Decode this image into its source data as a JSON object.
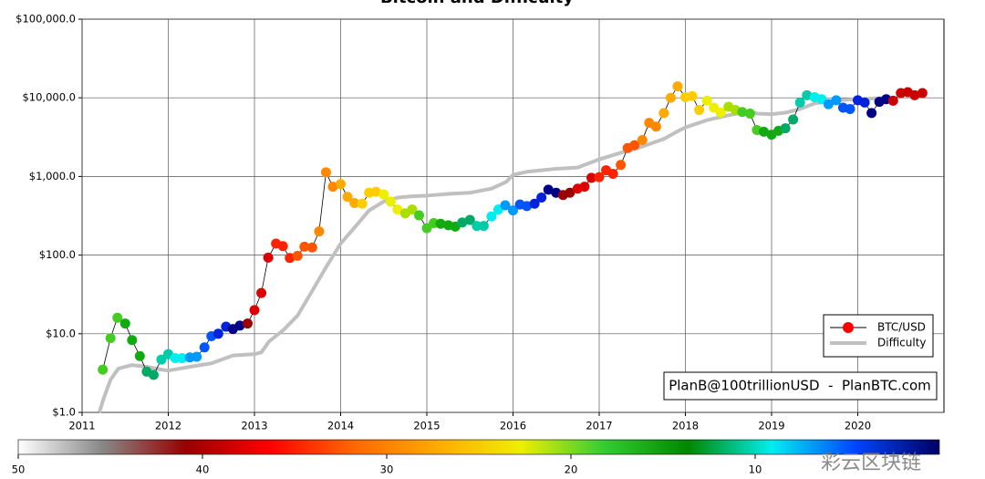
{
  "chart_data": {
    "type": "line",
    "title": "Bitcoin and Difficulty",
    "xlim": [
      2011,
      2021
    ],
    "xticks": [
      2011,
      2012,
      2013,
      2014,
      2015,
      2016,
      2017,
      2018,
      2019,
      2020
    ],
    "ylim": [
      1,
      100000
    ],
    "log_y": true,
    "grid": true,
    "legend": "lower right",
    "yticks": [
      {
        "value": 1,
        "label": "$1.0"
      },
      {
        "value": 10,
        "label": "$10.0"
      },
      {
        "value": 100,
        "label": "$100.0"
      },
      {
        "value": 1000,
        "label": "$1,000.0"
      },
      {
        "value": 10000,
        "label": "$10,000.0"
      },
      {
        "value": 100000,
        "label": "$100,000.0"
      }
    ],
    "series": [
      {
        "name": "BTC/USD",
        "color": "#000000",
        "legend_marker_color": "#ff0000",
        "x": [
          2011.24,
          2011.33,
          2011.41,
          2011.5,
          2011.58,
          2011.67,
          2011.75,
          2011.83,
          2011.92,
          2012.0,
          2012.08,
          2012.16,
          2012.25,
          2012.33,
          2012.42,
          2012.5,
          2012.58,
          2012.67,
          2012.75,
          2012.83,
          2012.92,
          2013.0,
          2013.08,
          2013.16,
          2013.25,
          2013.33,
          2013.41,
          2013.5,
          2013.58,
          2013.67,
          2013.75,
          2013.83,
          2013.91,
          2014.0,
          2014.08,
          2014.16,
          2014.25,
          2014.33,
          2014.41,
          2014.5,
          2014.58,
          2014.66,
          2014.75,
          2014.83,
          2014.91,
          2015.0,
          2015.08,
          2015.16,
          2015.25,
          2015.33,
          2015.41,
          2015.5,
          2015.58,
          2015.66,
          2015.75,
          2015.83,
          2015.91,
          2016.0,
          2016.08,
          2016.16,
          2016.25,
          2016.33,
          2016.41,
          2016.5,
          2016.58,
          2016.66,
          2016.75,
          2016.83,
          2016.91,
          2017.0,
          2017.08,
          2017.16,
          2017.25,
          2017.33,
          2017.41,
          2017.5,
          2017.58,
          2017.66,
          2017.75,
          2017.83,
          2017.91,
          2018.0,
          2018.08,
          2018.16,
          2018.25,
          2018.33,
          2018.41,
          2018.5,
          2018.58,
          2018.66,
          2018.75,
          2018.83,
          2018.91,
          2019.0,
          2019.08,
          2019.16,
          2019.25,
          2019.33,
          2019.41,
          2019.5,
          2019.58,
          2019.66,
          2019.75,
          2019.83,
          2019.91,
          2020.0,
          2020.08,
          2020.16,
          2020.25,
          2020.33,
          2020.41,
          2020.5,
          2020.58,
          2020.66,
          2020.75
        ],
        "values": [
          3.5,
          8.8,
          16,
          13.5,
          8.3,
          5.2,
          3.3,
          3.0,
          4.7,
          5.5,
          4.9,
          4.9,
          5.0,
          5.1,
          6.7,
          9.3,
          10,
          12.3,
          11.5,
          12.7,
          13.5,
          20,
          33,
          93,
          140,
          130,
          92,
          98,
          128,
          125,
          200,
          1130,
          740,
          800,
          550,
          460,
          450,
          620,
          640,
          590,
          480,
          380,
          340,
          380,
          320,
          220,
          255,
          250,
          240,
          230,
          260,
          280,
          235,
          235,
          310,
          380,
          430,
          370,
          440,
          420,
          450,
          540,
          680,
          620,
          580,
          620,
          700,
          740,
          960,
          980,
          1200,
          1080,
          1400,
          2300,
          2500,
          2900,
          4800,
          4300,
          6400,
          10000,
          14000,
          10200,
          10500,
          7000,
          9200,
          7500,
          6500,
          7700,
          7000,
          6600,
          6300,
          3900,
          3700,
          3400,
          3800,
          4100,
          5300,
          8700,
          10800,
          10200,
          9600,
          8300,
          9300,
          7500,
          7200,
          9300,
          8700,
          6400,
          8900,
          9600,
          9200,
          11500,
          11800,
          10800,
          11500
        ],
        "colors": [
          "#44cc22",
          "#44cc22",
          "#44cc22",
          "#11aa11",
          "#11aa11",
          "#11aa11",
          "#00aa66",
          "#00aa66",
          "#00ccaa",
          "#00ccaa",
          "#00eeee",
          "#00eeee",
          "#0099ff",
          "#0099ff",
          "#0055ff",
          "#0055ff",
          "#0022dd",
          "#0022dd",
          "#000088",
          "#000088",
          "#990000",
          "#dd0000",
          "#dd0000",
          "#dd0000",
          "#ff2200",
          "#ff2200",
          "#ff2200",
          "#ff5500",
          "#ff5500",
          "#ff5500",
          "#ff8800",
          "#ff8800",
          "#ff8800",
          "#ffaa00",
          "#ffaa00",
          "#ffaa00",
          "#ffcc00",
          "#ffcc00",
          "#ffcc00",
          "#eeee00",
          "#eeee00",
          "#eeee00",
          "#aadd00",
          "#aadd00",
          "#44cc22",
          "#44cc22",
          "#44cc22",
          "#11aa11",
          "#11aa11",
          "#11aa11",
          "#00aa66",
          "#00aa66",
          "#00ccaa",
          "#00ccaa",
          "#00eeee",
          "#00eeee",
          "#0099ff",
          "#0099ff",
          "#0055ff",
          "#0055ff",
          "#0022dd",
          "#0022dd",
          "#000088",
          "#000088",
          "#990000",
          "#990000",
          "#dd0000",
          "#dd0000",
          "#dd0000",
          "#ff2200",
          "#ff2200",
          "#ff2200",
          "#ff5500",
          "#ff5500",
          "#ff5500",
          "#ff8800",
          "#ff8800",
          "#ff8800",
          "#ffaa00",
          "#ffaa00",
          "#ffaa00",
          "#ffcc00",
          "#ffcc00",
          "#ffcc00",
          "#eeee00",
          "#eeee00",
          "#eeee00",
          "#aadd00",
          "#aadd00",
          "#44cc22",
          "#44cc22",
          "#44cc22",
          "#11aa11",
          "#11aa11",
          "#11aa11",
          "#00aa66",
          "#00aa66",
          "#00ccaa",
          "#00ccaa",
          "#00eeee",
          "#00eeee",
          "#0099ff",
          "#0099ff",
          "#0055ff",
          "#0055ff",
          "#0022dd",
          "#0022dd",
          "#000088",
          "#000088",
          "#000088",
          "#cc0000",
          "#cc0000",
          "#cc0000",
          "#cc0000",
          "#cc0000"
        ]
      },
      {
        "name": "Difficulty",
        "color": "#c0c0c0",
        "x": [
          2011.2,
          2011.25,
          2011.33,
          2011.42,
          2011.58,
          2011.75,
          2011.92,
          2012.0,
          2012.25,
          2012.5,
          2012.75,
          2013.0,
          2013.08,
          2013.17,
          2013.33,
          2013.5,
          2013.67,
          2013.83,
          2014.0,
          2014.17,
          2014.33,
          2014.5,
          2014.67,
          2014.83,
          2015.0,
          2015.25,
          2015.5,
          2015.75,
          2015.92,
          2016.0,
          2016.17,
          2016.5,
          2016.75,
          2017.0,
          2017.25,
          2017.5,
          2017.75,
          2017.92,
          2018.0,
          2018.25,
          2018.5,
          2018.75,
          2018.83,
          2019.0,
          2019.17,
          2019.33,
          2019.5,
          2019.75,
          2020.0,
          2020.17,
          2020.33
        ],
        "values": [
          1.0,
          1.5,
          2.6,
          3.6,
          4.0,
          3.8,
          3.5,
          3.4,
          3.8,
          4.2,
          5.3,
          5.5,
          5.8,
          8,
          11,
          17,
          35,
          70,
          140,
          230,
          370,
          480,
          540,
          560,
          570,
          600,
          620,
          700,
          850,
          1050,
          1150,
          1250,
          1300,
          1650,
          2000,
          2400,
          3000,
          3800,
          4200,
          5200,
          6000,
          6700,
          6300,
          6200,
          6500,
          7200,
          8500,
          9300,
          9600,
          9800,
          10000
        ]
      }
    ],
    "annotation": "PlanB@100trillionUSD  -  PlanBTC.com",
    "colorbar": {
      "lim": [
        50,
        0
      ],
      "ticks": [
        50,
        40,
        30,
        20,
        10
      ],
      "colors": [
        "#ffffff",
        "#888888",
        "#990000",
        "#ff0000",
        "#ff6600",
        "#ffaa00",
        "#eeee00",
        "#33cc33",
        "#008800",
        "#00eeee",
        "#0044ff",
        "#000066"
      ]
    },
    "watermark": "彩云区块链"
  }
}
